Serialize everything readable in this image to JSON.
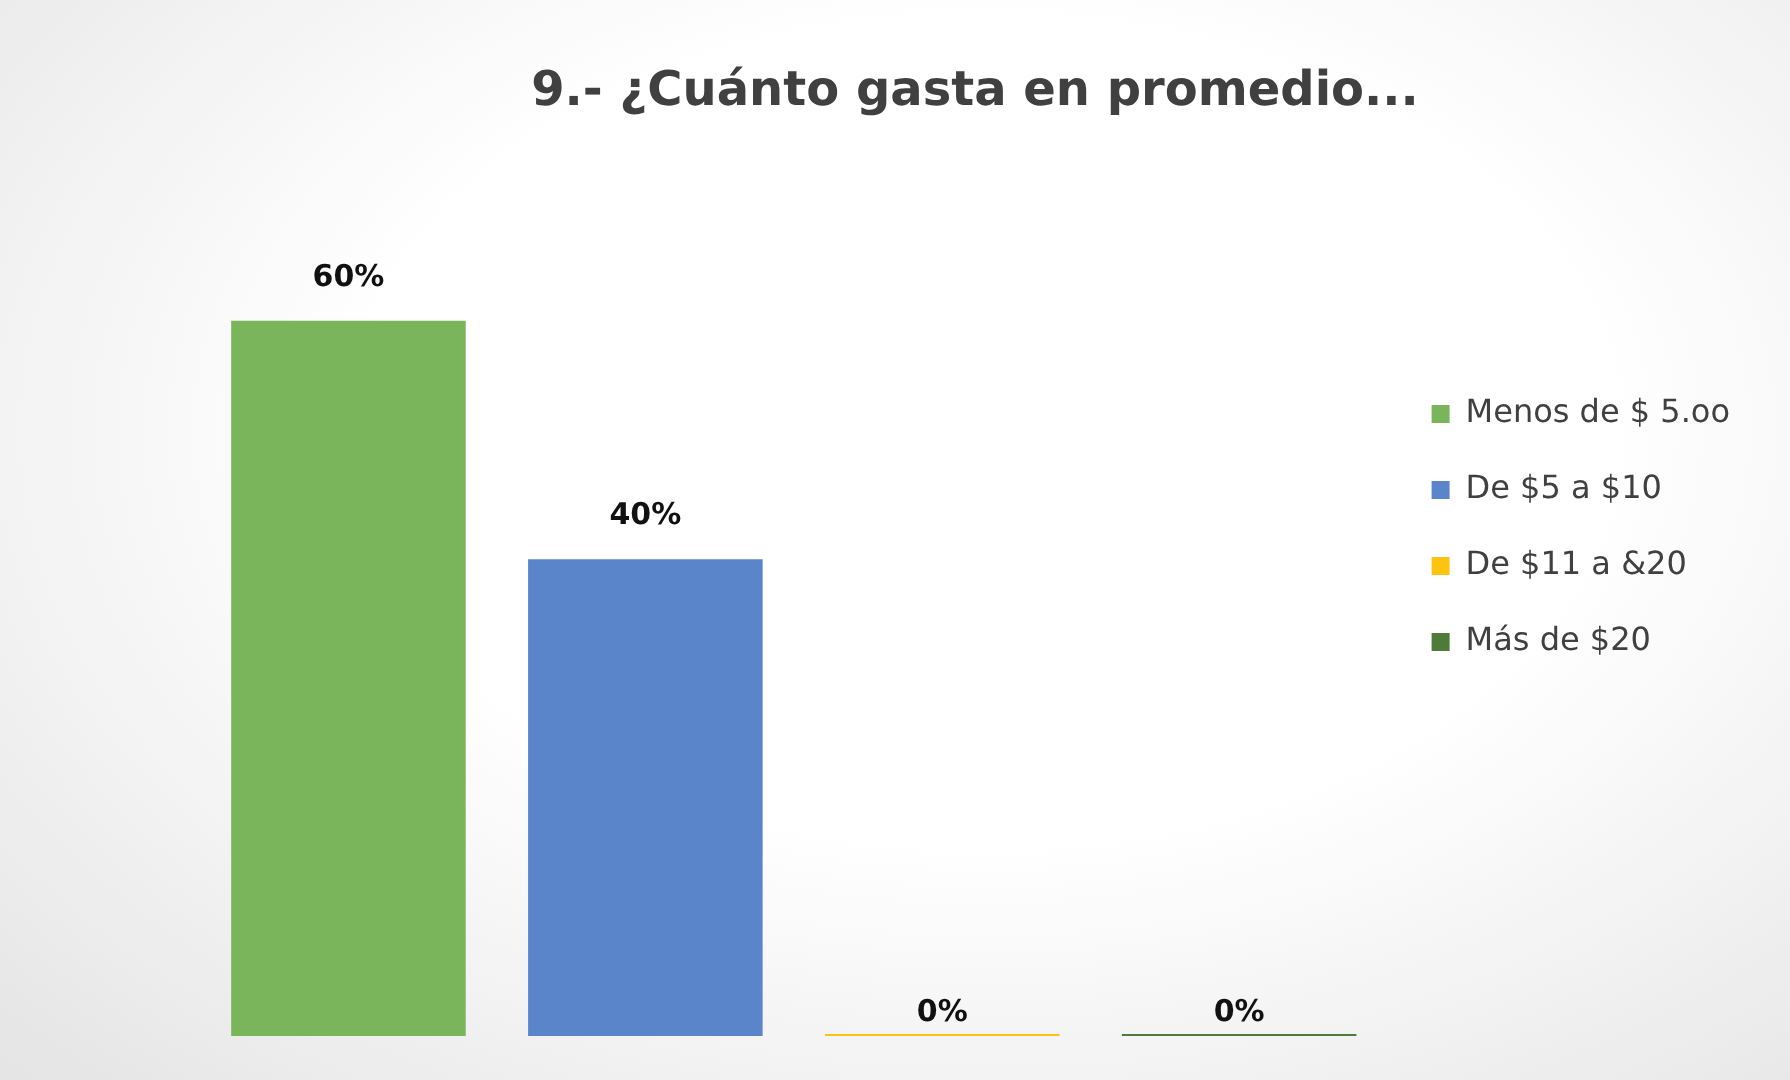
{
  "chart_data": {
    "type": "bar",
    "title": "9.- ¿Cuánto gasta en promedio...",
    "categories": [
      null
    ],
    "legend": "right",
    "series": [
      {
        "name": "Menos de $ 5.oo",
        "color": "#7ab55c",
        "values": [
          60
        ],
        "value_labels": [
          "60%"
        ]
      },
      {
        "name": "De $5 a $10",
        "color": "#5b85cb",
        "values": [
          40
        ],
        "value_labels": [
          "40%"
        ]
      },
      {
        "name": "De $11 a &20",
        "color": "#fcc30f",
        "values": [
          0
        ],
        "value_labels": [
          "0%"
        ]
      },
      {
        "name": "Más de $20",
        "color": "#4f7a3a",
        "values": [
          0
        ],
        "value_labels": [
          "0%"
        ]
      }
    ]
  }
}
